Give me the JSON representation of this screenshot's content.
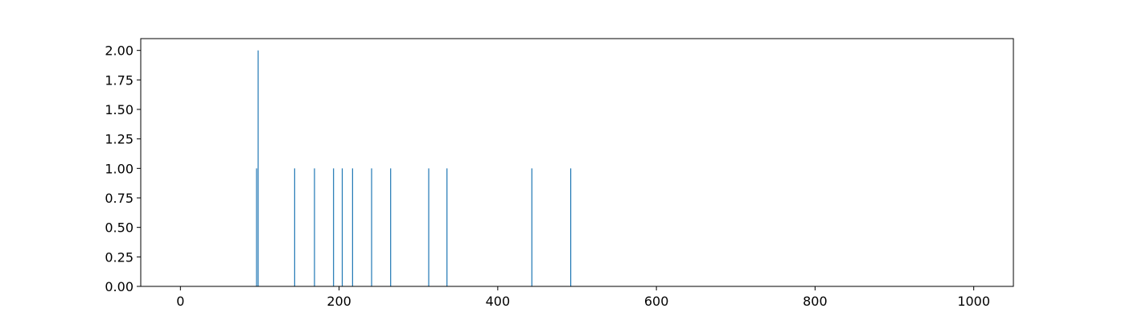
{
  "chart_data": {
    "type": "bar",
    "title": "",
    "xlabel": "",
    "ylabel": "",
    "xlim": [
      -50,
      1050
    ],
    "ylim": [
      0,
      2.1
    ],
    "x_ticks": [
      0,
      200,
      400,
      600,
      800,
      1000
    ],
    "x_tick_labels": [
      "0",
      "200",
      "400",
      "600",
      "800",
      "1000"
    ],
    "y_ticks": [
      0,
      0.25,
      0.5,
      0.75,
      1.0,
      1.25,
      1.5,
      1.75,
      2.0
    ],
    "y_tick_labels": [
      "0.00",
      "0.25",
      "0.50",
      "0.75",
      "1.00",
      "1.25",
      "1.50",
      "1.75",
      "2.00"
    ],
    "bar_color": "#1f77b4",
    "grid": false,
    "x": [
      96,
      98,
      144,
      169,
      193,
      204,
      217,
      241,
      265,
      313,
      336,
      443,
      492
    ],
    "values": [
      1,
      2,
      1,
      1,
      1,
      1,
      1,
      1,
      1,
      1,
      1,
      1,
      1
    ]
  }
}
